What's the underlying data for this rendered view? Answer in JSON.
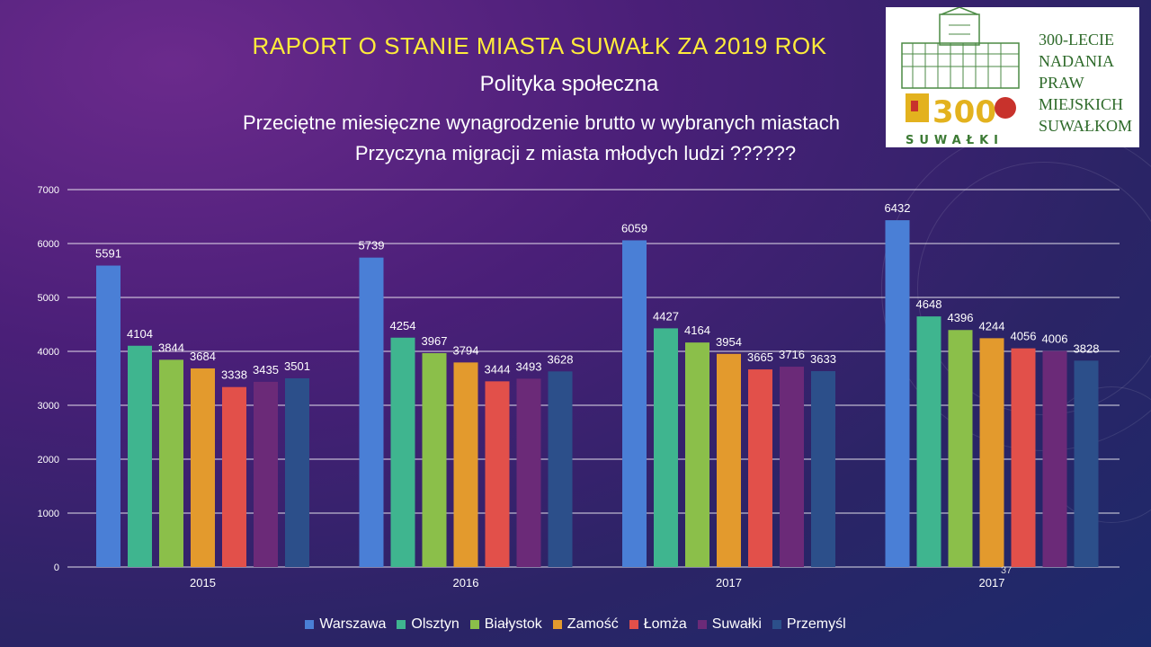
{
  "slide": {
    "title": "RAPORT O STANIE MIASTA SUWAŁK ZA 2019 ROK",
    "subtitle": "Polityka społeczna",
    "line3": "Przeciętne miesięczne wynagrodzenie brutto w wybranych miastach",
    "line4": "Przyczyna migracji z miasta młodych ludzi ??????",
    "page_number": "37"
  },
  "logo": {
    "lines": [
      "300-LECIE",
      "NADANIA",
      "PRAW",
      "MIEJSKICH",
      "SUWAŁKOM"
    ],
    "emblem_text": "300",
    "city_text": "SUWAŁKI"
  },
  "chart_data": {
    "type": "bar",
    "categories": [
      "2015",
      "2016",
      "2017",
      "2017"
    ],
    "ylim": [
      0,
      7000
    ],
    "yticks": [
      0,
      1000,
      2000,
      3000,
      4000,
      5000,
      6000,
      7000
    ],
    "grid": true,
    "legend_position": "bottom",
    "series": [
      {
        "name": "Warszawa",
        "color": "#4a7fd6",
        "values": [
          5591,
          5739,
          6059,
          6432
        ]
      },
      {
        "name": "Olsztyn",
        "color": "#3fb58f",
        "values": [
          4104,
          4254,
          4427,
          4648
        ]
      },
      {
        "name": "Białystok",
        "color": "#8bbf4a",
        "values": [
          3844,
          3967,
          4164,
          4396
        ]
      },
      {
        "name": "Zamość",
        "color": "#e39a2d",
        "values": [
          3684,
          3794,
          3954,
          4244
        ]
      },
      {
        "name": "Łomża",
        "color": "#e2504a",
        "values": [
          3338,
          3444,
          3665,
          4056
        ]
      },
      {
        "name": "Suwałki",
        "color": "#6b2a78",
        "values": [
          3435,
          3493,
          3716,
          4006
        ]
      },
      {
        "name": "Przemyśl",
        "color": "#2c4f8a",
        "values": [
          3501,
          3628,
          3633,
          3828
        ]
      }
    ]
  }
}
